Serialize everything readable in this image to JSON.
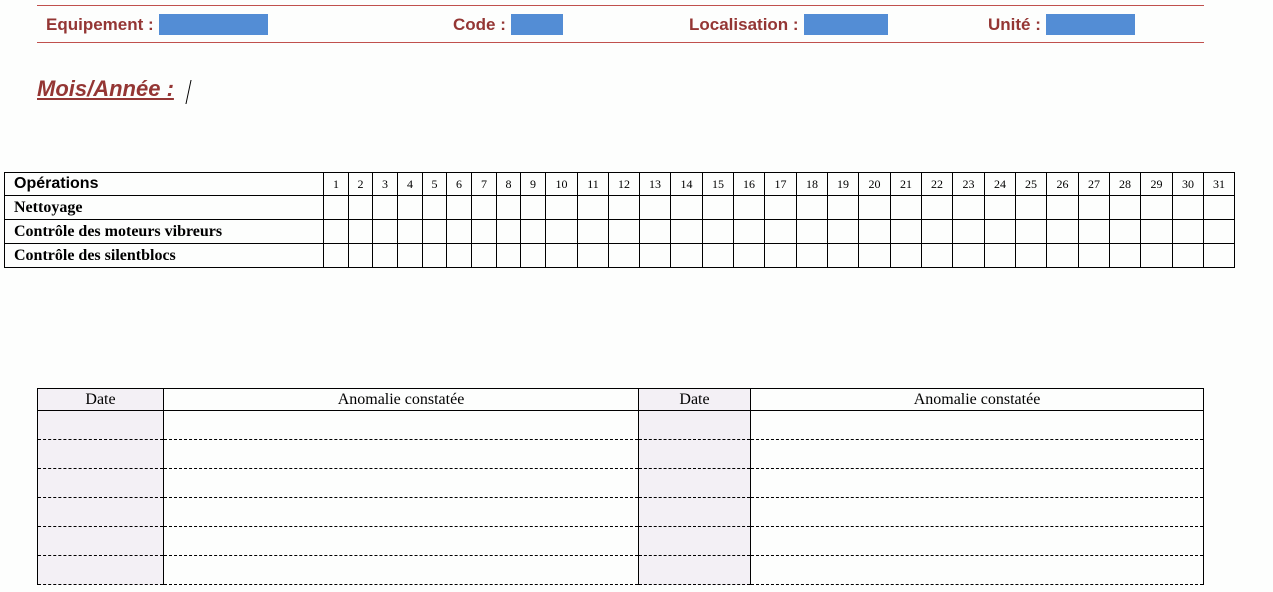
{
  "header": {
    "fields": [
      {
        "label": "Equipement :",
        "value": ""
      },
      {
        "label": "Code :",
        "value": ""
      },
      {
        "label": "Localisation :",
        "value": ""
      },
      {
        "label": "Unité :",
        "value": ""
      }
    ],
    "month_year_label": "Mois/Année :"
  },
  "operations_table": {
    "header": "Opérations",
    "days": [
      "1",
      "2",
      "3",
      "4",
      "5",
      "6",
      "7",
      "8",
      "9",
      "10",
      "11",
      "12",
      "13",
      "14",
      "15",
      "16",
      "17",
      "18",
      "19",
      "20",
      "21",
      "22",
      "23",
      "24",
      "25",
      "26",
      "27",
      "28",
      "29",
      "30",
      "31"
    ],
    "rows": [
      "Nettoyage",
      "Contrôle des moteurs vibreurs",
      "Contrôle des silentblocs"
    ]
  },
  "anomaly_table": {
    "headers": [
      "Date",
      "Anomalie constatée",
      "Date",
      "Anomalie constatée"
    ],
    "row_count": 6
  },
  "colors": {
    "label": "#943634",
    "rule": "#c0504d",
    "field_fill": "#538dd5",
    "date_column": "#f3f0f5"
  }
}
